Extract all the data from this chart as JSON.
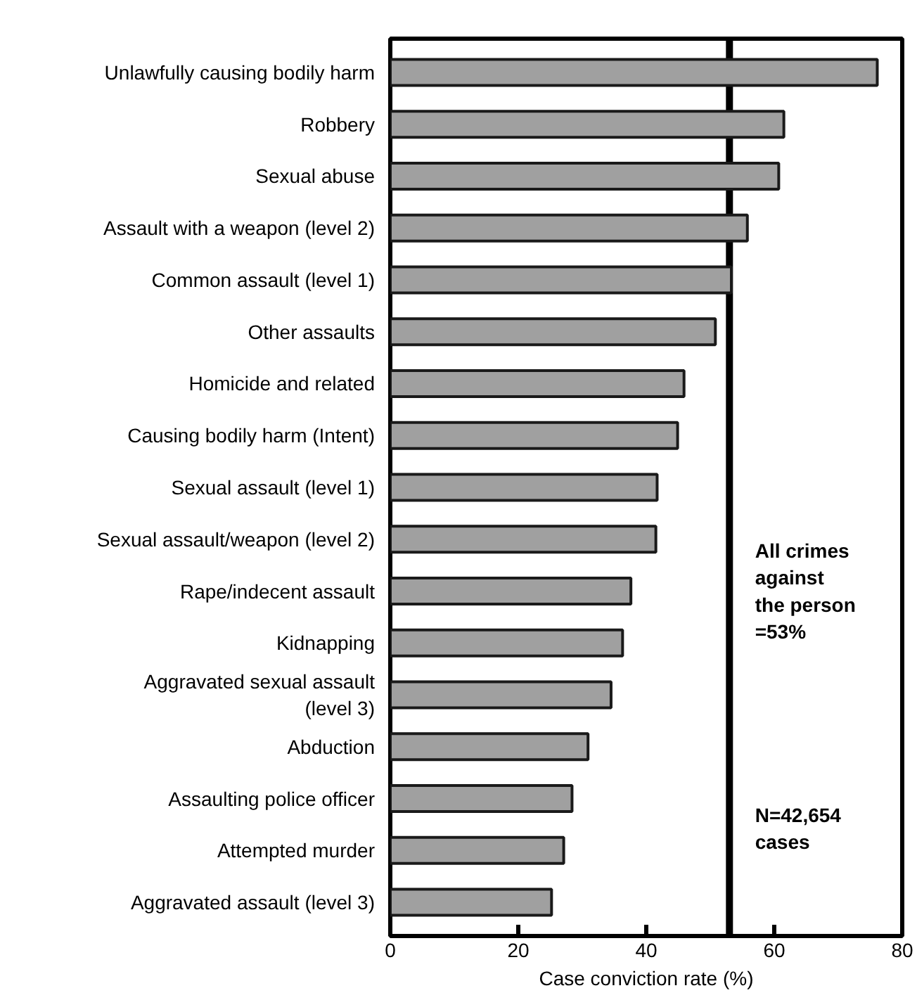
{
  "chart_data": {
    "type": "bar",
    "orientation": "horizontal",
    "xlabel": "Case conviction rate (%)",
    "categories": [
      "Unlawfully causing bodily harm",
      "Robbery",
      "Sexual abuse",
      "Assault with a weapon (level 2)",
      "Common assault (level 1)",
      "Other assaults",
      "Homicide and related",
      "Causing bodily harm (Intent)",
      "Sexual assault (level 1)",
      "Sexual assault/weapon (level 2)",
      "Rape/indecent assault",
      "Kidnapping",
      "Aggravated sexual assault\n(level 3)",
      "Abduction",
      "Assaulting police officer",
      "Attempted murder",
      "Aggravated assault (level 3)"
    ],
    "values": [
      76.1,
      61.5,
      60.7,
      55.8,
      53.3,
      50.8,
      45.9,
      44.9,
      41.7,
      41.5,
      37.6,
      36.3,
      34.5,
      30.9,
      28.4,
      27.1,
      25.2
    ],
    "color": "#a0a0a0",
    "xlim": [
      0,
      80
    ],
    "xticks": [
      0,
      20,
      40,
      60,
      80
    ],
    "grid": false,
    "ref_lines": [
      {
        "axis": "x",
        "value": 53,
        "color": "#000000"
      }
    ],
    "annotations": [
      "All crimes\nagainst\nthe person\n=53%",
      "N=42,654\ncases"
    ]
  }
}
